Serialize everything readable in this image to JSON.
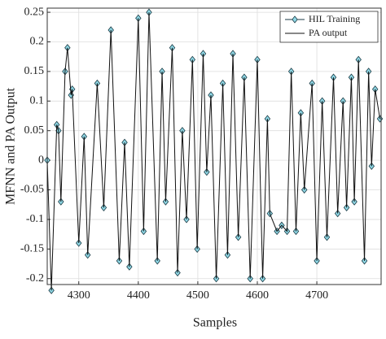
{
  "chart_data": {
    "type": "line",
    "xlabel": "Samples",
    "ylabel": "MFNN and PA Output",
    "x": [
      4247,
      4254,
      4263,
      4266,
      4270,
      4277,
      4281,
      4287,
      4289,
      4300,
      4309,
      4315,
      4331,
      4342,
      4354,
      4368,
      4377,
      4385,
      4400,
      4409,
      4418,
      4432,
      4440,
      4446,
      4457,
      4466,
      4474,
      4481,
      4491,
      4499,
      4509,
      4515,
      4522,
      4531,
      4542,
      4550,
      4559,
      4568,
      4578,
      4588,
      4600,
      4609,
      4617,
      4621,
      4633,
      4641,
      4650,
      4657,
      4665,
      4673,
      4679,
      4692,
      4700,
      4709,
      4717,
      4728,
      4735,
      4744,
      4750,
      4758,
      4763,
      4770,
      4780,
      4787,
      4792,
      4798,
      4806
    ],
    "series": [
      {
        "name": "HIL Training",
        "color": "#8fd8e6",
        "marker": "diamond",
        "values": [
          0,
          -0.22,
          0.06,
          0.05,
          -0.07,
          0.15,
          0.19,
          0.11,
          0.12,
          -0.14,
          0.04,
          -0.16,
          0.13,
          -0.08,
          0.22,
          -0.17,
          0.03,
          -0.18,
          0.24,
          -0.12,
          0.25,
          -0.17,
          0.15,
          -0.07,
          0.19,
          -0.19,
          0.05,
          -0.1,
          0.17,
          -0.15,
          0.18,
          -0.02,
          0.11,
          -0.2,
          0.13,
          -0.16,
          0.18,
          -0.13,
          0.14,
          -0.2,
          0.17,
          -0.2,
          0.07,
          -0.09,
          -0.12,
          -0.11,
          -0.12,
          0.15,
          -0.12,
          0.08,
          -0.05,
          0.13,
          -0.17,
          0.1,
          -0.13,
          0.14,
          -0.09,
          0.1,
          -0.08,
          0.14,
          -0.07,
          0.17,
          -0.17,
          0.15,
          -0.01,
          0.12,
          0.07
        ]
      },
      {
        "name": "PA output",
        "color": "#111111",
        "marker": "none",
        "values": [
          0,
          -0.22,
          0.06,
          0.05,
          -0.07,
          0.15,
          0.19,
          0.11,
          0.12,
          -0.14,
          0.04,
          -0.16,
          0.13,
          -0.08,
          0.22,
          -0.17,
          0.03,
          -0.18,
          0.24,
          -0.12,
          0.25,
          -0.17,
          0.15,
          -0.07,
          0.19,
          -0.19,
          0.05,
          -0.1,
          0.17,
          -0.15,
          0.18,
          -0.02,
          0.11,
          -0.2,
          0.13,
          -0.16,
          0.18,
          -0.13,
          0.14,
          -0.2,
          0.17,
          -0.2,
          0.07,
          -0.09,
          -0.12,
          -0.11,
          -0.12,
          0.15,
          -0.12,
          0.08,
          -0.05,
          0.13,
          -0.17,
          0.1,
          -0.13,
          0.14,
          -0.09,
          0.1,
          -0.08,
          0.14,
          -0.07,
          0.17,
          -0.17,
          0.15,
          -0.01,
          0.12,
          0.07
        ]
      }
    ],
    "xlim": [
      4247,
      4808
    ],
    "xticks": [
      4300,
      4400,
      4500,
      4600,
      4700
    ],
    "ylim": [
      -0.21,
      0.257
    ],
    "yticks": [
      -0.2,
      -0.15,
      -0.1,
      -0.05,
      0,
      0.05,
      0.1,
      0.15,
      0.2,
      0.25
    ],
    "grid": true,
    "legend": "northeast"
  }
}
